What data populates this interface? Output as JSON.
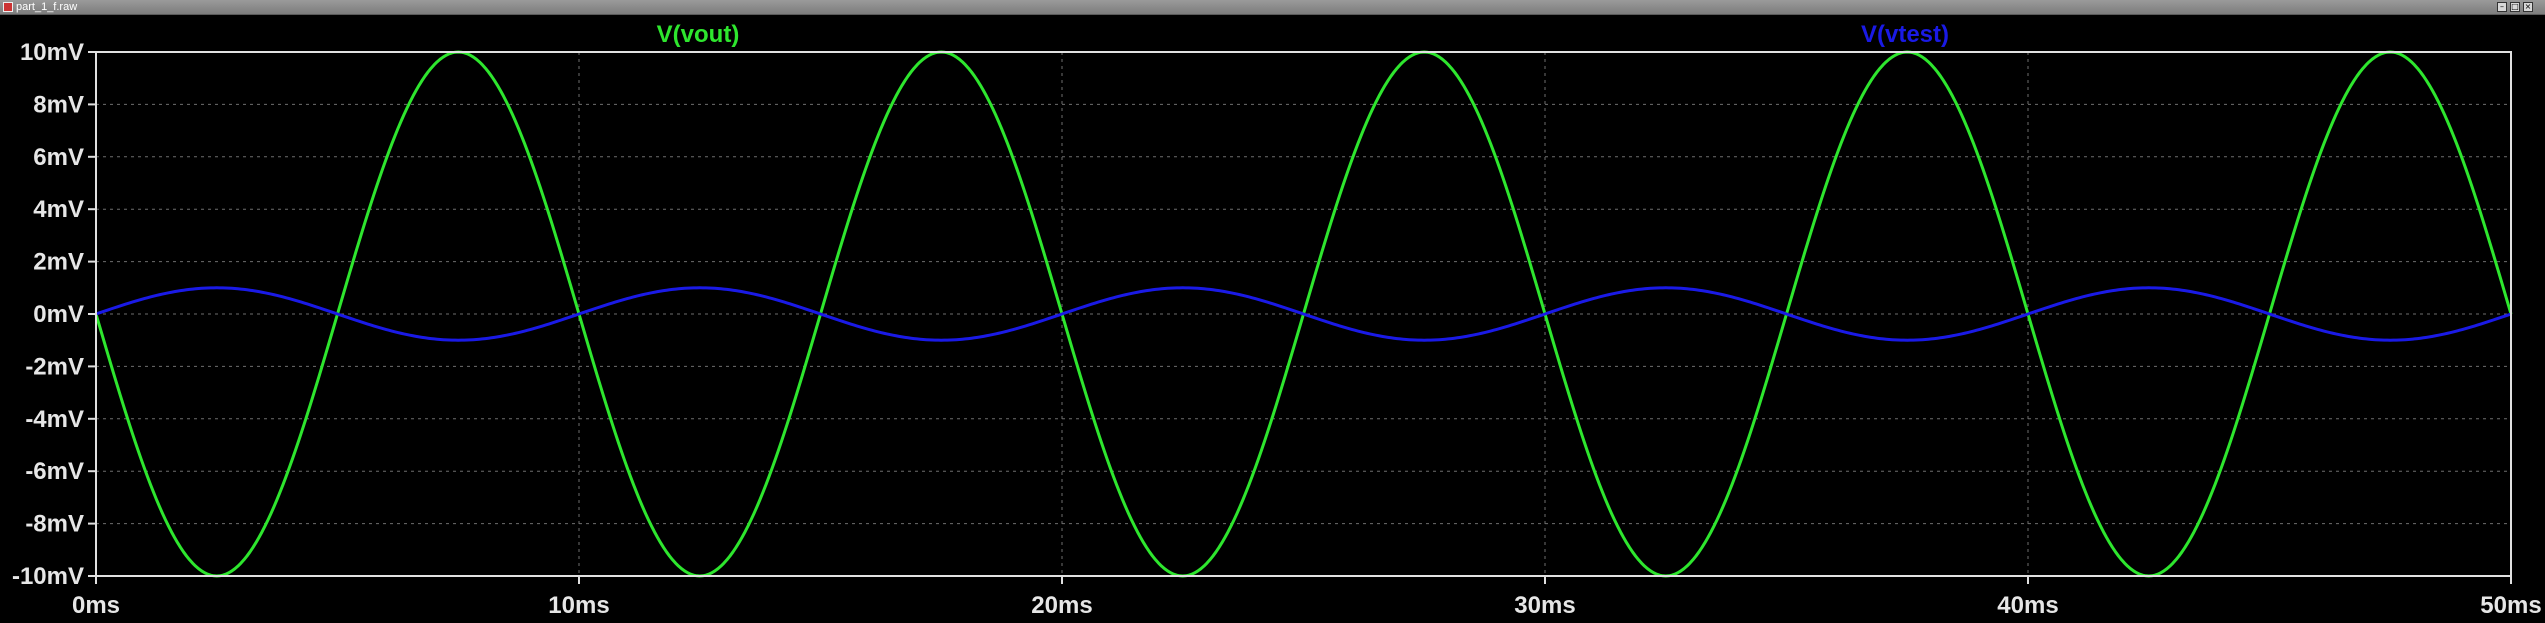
{
  "window": {
    "title": "part_1_f.raw",
    "buttons": [
      "–",
      "□",
      "×"
    ]
  },
  "colors": {
    "background": "#000000",
    "frame": "#e0e0e0",
    "grid": "#6e6e6e",
    "vout": "#2ee62e",
    "vtest": "#1a1ae6"
  },
  "chart_data": {
    "type": "line",
    "xlabel": "",
    "ylabel": "",
    "xlim": [
      0,
      50
    ],
    "ylim": [
      -10,
      10
    ],
    "x_unit": "ms",
    "y_unit": "mV",
    "x_ticks": [
      "0ms",
      "10ms",
      "20ms",
      "30ms",
      "40ms",
      "50ms"
    ],
    "y_ticks": [
      "10mV",
      "8mV",
      "6mV",
      "4mV",
      "2mV",
      "0mV",
      "-2mV",
      "-4mV",
      "-6mV",
      "-8mV",
      "-10mV"
    ],
    "grid": true,
    "series": [
      {
        "name": "V(vout)",
        "color": "#2ee62e",
        "x": [
          0,
          2.5,
          5,
          7.5,
          10,
          12.5,
          15,
          17.5,
          20,
          22.5,
          25,
          27.5,
          30,
          32.5,
          35,
          37.5,
          40,
          42.5,
          45,
          47.5,
          50
        ],
        "y": [
          0,
          -10,
          0,
          10,
          0,
          -10,
          0,
          10,
          0,
          -10,
          0,
          10,
          0,
          -10,
          0,
          10,
          0,
          -10,
          0,
          10,
          0
        ]
      },
      {
        "name": "V(vtest)",
        "color": "#1a1ae6",
        "x": [
          0,
          2.5,
          5,
          7.5,
          10,
          12.5,
          15,
          17.5,
          20,
          22.5,
          25,
          27.5,
          30,
          32.5,
          35,
          37.5,
          40,
          42.5,
          45,
          47.5,
          50
        ],
        "y": [
          0,
          1,
          0,
          -1,
          0,
          1,
          0,
          -1,
          0,
          1,
          0,
          -1,
          0,
          1,
          0,
          -1,
          0,
          1,
          0,
          -1,
          0
        ]
      }
    ]
  }
}
